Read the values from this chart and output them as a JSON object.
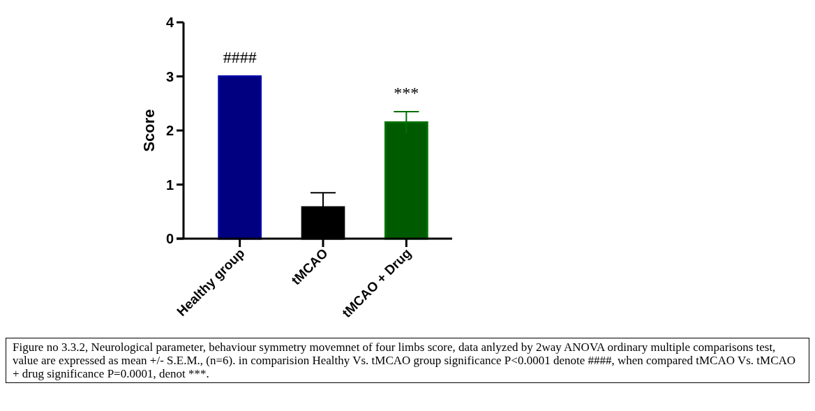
{
  "chart_data": {
    "type": "bar",
    "ylabel": "Score",
    "categories": [
      "Healthy group",
      "tMCAO",
      "tMCAO + Drug"
    ],
    "values": [
      3,
      0.58,
      2.15
    ],
    "colors": [
      "#000080",
      "#000000",
      "#005a00"
    ],
    "errors": [
      null,
      0.27,
      0.2
    ],
    "ylim": [
      0,
      4
    ],
    "yticks": [
      0,
      1,
      2,
      3,
      4
    ],
    "grid": false,
    "annotations": [
      "####",
      "***",
      "Figure no 3.3.2, Neurological parameter, behaviour symmetry movemnet of four limbs score, data anlyzed by 2way ANOVA ordinary multiple comparisons test, value are expressed as mean +/- S.E.M., (n=6). in comparision Healthy Vs. tMCAO group significance P<0.0001 denote ####, when compared tMCAO Vs. tMCAO + drug significance P=0.0001, denot ***."
    ]
  }
}
